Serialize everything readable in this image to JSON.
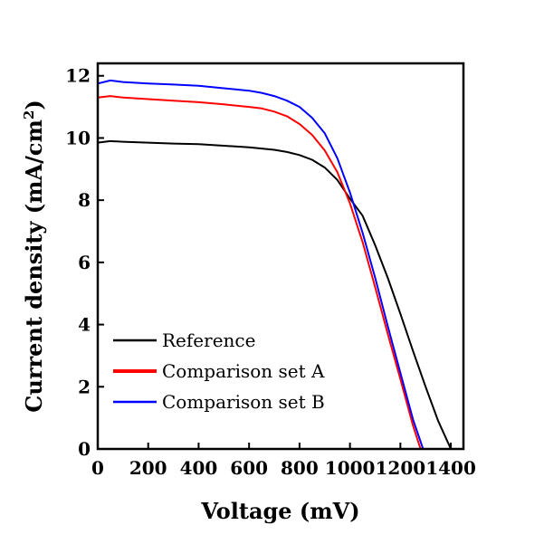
{
  "chart_data": {
    "type": "line",
    "xlabel": "Voltage (mV)",
    "ylabel_main": "Current density (mA/cm",
    "ylabel_sup": "2",
    "ylabel_close": ")",
    "xlim": [
      0,
      1450
    ],
    "ylim": [
      0,
      12.4
    ],
    "xticks": [
      0,
      200,
      400,
      600,
      800,
      1000,
      1200,
      1400
    ],
    "yticks": [
      0,
      2,
      4,
      6,
      8,
      10,
      12
    ],
    "legend_position": "lower-left",
    "series": [
      {
        "name": "Reference",
        "color": "#000000",
        "x": [
          0,
          50,
          100,
          200,
          300,
          400,
          500,
          600,
          700,
          750,
          800,
          850,
          900,
          950,
          1000,
          1050,
          1100,
          1150,
          1200,
          1250,
          1300,
          1350,
          1400
        ],
        "y": [
          9.85,
          9.9,
          9.88,
          9.85,
          9.82,
          9.8,
          9.75,
          9.7,
          9.62,
          9.55,
          9.45,
          9.3,
          9.05,
          8.65,
          8.05,
          7.5,
          6.55,
          5.5,
          4.35,
          3.15,
          2.0,
          0.9,
          0.0
        ]
      },
      {
        "name": "Comparison set A",
        "color": "#ff0000",
        "x": [
          0,
          50,
          100,
          200,
          300,
          400,
          500,
          600,
          650,
          700,
          750,
          800,
          850,
          900,
          950,
          1000,
          1050,
          1100,
          1150,
          1200,
          1250,
          1280
        ],
        "y": [
          11.3,
          11.35,
          11.3,
          11.25,
          11.2,
          11.15,
          11.08,
          11.0,
          10.95,
          10.85,
          10.7,
          10.45,
          10.1,
          9.6,
          8.9,
          7.9,
          6.65,
          5.2,
          3.7,
          2.25,
          0.75,
          0.0
        ]
      },
      {
        "name": "Comparison set B",
        "color": "#0000ff",
        "x": [
          0,
          50,
          100,
          200,
          300,
          400,
          500,
          600,
          650,
          700,
          750,
          800,
          850,
          900,
          950,
          1000,
          1050,
          1100,
          1150,
          1200,
          1250,
          1290
        ],
        "y": [
          11.75,
          11.85,
          11.8,
          11.75,
          11.72,
          11.68,
          11.6,
          11.52,
          11.45,
          11.35,
          11.2,
          11.0,
          10.65,
          10.15,
          9.35,
          8.25,
          6.95,
          5.5,
          3.95,
          2.45,
          0.95,
          0.0
        ]
      }
    ]
  }
}
